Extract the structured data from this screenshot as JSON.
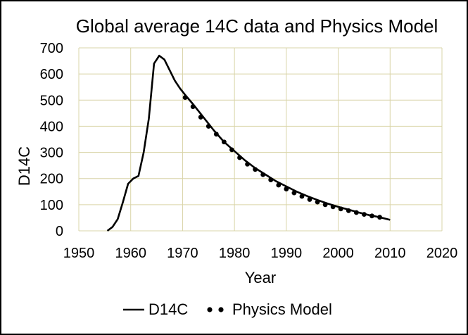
{
  "chart_data": {
    "type": "line",
    "title": "Global average 14C data and Physics Model",
    "xlabel": "Year",
    "ylabel": "D14C",
    "xlim": [
      1950,
      2020
    ],
    "ylim": [
      0,
      700
    ],
    "xticks": [
      1950,
      1960,
      1970,
      1980,
      1990,
      2000,
      2010,
      2020
    ],
    "yticks": [
      0,
      100,
      200,
      300,
      400,
      500,
      600,
      700
    ],
    "grid": true,
    "legend_position": "bottom",
    "series": [
      {
        "name": "D14C",
        "style": "line",
        "color": "#000000",
        "x": [
          1955.5,
          1956.5,
          1957.5,
          1958.5,
          1959.5,
          1960.5,
          1961.5,
          1962.5,
          1963.5,
          1964.5,
          1965.5,
          1966.5,
          1967.5,
          1968.5,
          1969.5,
          1970.5,
          1972,
          1974,
          1976,
          1978,
          1980,
          1982,
          1984,
          1986,
          1988,
          1990,
          1992,
          1994,
          1996,
          1998,
          2000,
          2002,
          2004,
          2006,
          2008,
          2010
        ],
        "values": [
          0,
          15,
          45,
          110,
          180,
          200,
          210,
          300,
          430,
          640,
          670,
          655,
          615,
          575,
          545,
          520,
          485,
          435,
          385,
          340,
          305,
          270,
          240,
          215,
          190,
          170,
          150,
          133,
          118,
          104,
          92,
          81,
          70,
          60,
          52,
          42
        ]
      },
      {
        "name": "Physics Model",
        "style": "dots",
        "color": "#000000",
        "x": [
          1970.5,
          1972,
          1973.5,
          1975,
          1976.5,
          1978,
          1979.5,
          1981,
          1982.5,
          1984,
          1985.5,
          1987,
          1988.5,
          1990,
          1991.5,
          1993,
          1994.5,
          1996,
          1997.5,
          1999,
          2000.5,
          2002,
          2003.5,
          2005,
          2006.5,
          2008
        ],
        "values": [
          510,
          475,
          435,
          400,
          370,
          340,
          310,
          280,
          255,
          235,
          215,
          195,
          175,
          160,
          145,
          132,
          120,
          110,
          100,
          92,
          84,
          77,
          70,
          63,
          57,
          52
        ]
      }
    ]
  },
  "colors": {
    "line": "#000000",
    "grid": "#d9d4a8",
    "background": "#ffffff"
  }
}
